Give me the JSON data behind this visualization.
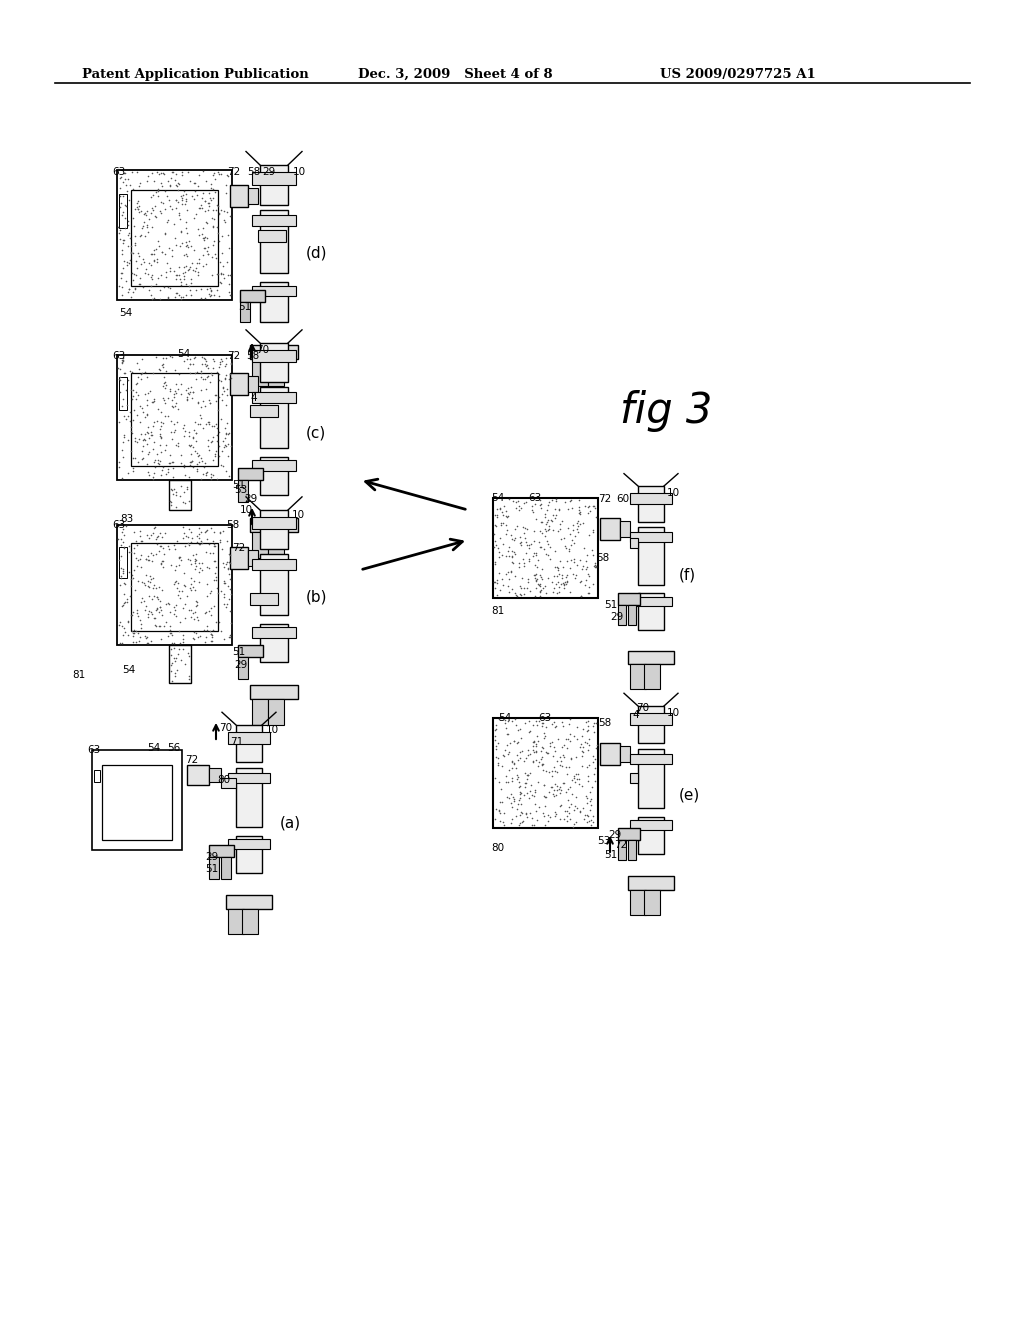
{
  "background_color": "#ffffff",
  "header_text_left": "Patent Application Publication",
  "header_text_mid": "Dec. 3, 2009   Sheet 4 of 8",
  "header_text_right": "US 2009/0297725 A1",
  "fig_label": "fig 3"
}
